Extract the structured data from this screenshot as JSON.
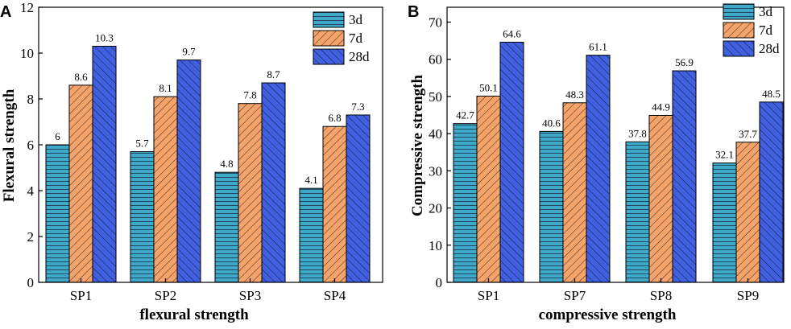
{
  "colors": {
    "c3d": "#3fa9c9",
    "c7d": "#f4a36a",
    "c28d": "#4060e0"
  },
  "chart_data": [
    {
      "type": "bar",
      "panel": "A",
      "categories": [
        "SP1",
        "SP2",
        "SP3",
        "SP4"
      ],
      "series": [
        {
          "name": "3d",
          "values": [
            6,
            5.7,
            4.8,
            4.1
          ]
        },
        {
          "name": "7d",
          "values": [
            8.6,
            8.1,
            7.8,
            6.8
          ]
        },
        {
          "name": "28d",
          "values": [
            10.3,
            9.7,
            8.7,
            7.3
          ]
        }
      ],
      "value_labels": [
        [
          "6",
          "5.7",
          "4.8",
          "4.1"
        ],
        [
          "8.6",
          "8.1",
          "7.8",
          "6.8"
        ],
        [
          "10.3",
          "9.7",
          "8.7",
          "7.3"
        ]
      ],
      "yticks": [
        0,
        2,
        4,
        6,
        8,
        10,
        12
      ],
      "xlabel": "flexural strength",
      "ylabel": "Flexural strength",
      "ylim": [
        0,
        12
      ],
      "legend": "top-right"
    },
    {
      "type": "bar",
      "panel": "B",
      "categories": [
        "SP1",
        "SP7",
        "SP8",
        "SP9"
      ],
      "series": [
        {
          "name": "3d",
          "values": [
            42.7,
            40.6,
            37.8,
            32.1
          ]
        },
        {
          "name": "7d",
          "values": [
            50.1,
            48.3,
            44.9,
            37.7
          ]
        },
        {
          "name": "28d",
          "values": [
            64.6,
            61.1,
            56.9,
            48.5
          ]
        }
      ],
      "value_labels": [
        [
          "42.7",
          "40.6",
          "37.8",
          "32.1"
        ],
        [
          "50.1",
          "48.3",
          "44.9",
          "37.7"
        ],
        [
          "64.6",
          "61.1",
          "56.9",
          "48.5"
        ]
      ],
      "yticks": [
        0,
        10,
        20,
        30,
        40,
        50,
        60,
        70
      ],
      "xlabel": "compressive strength",
      "ylabel": "Compressive strength",
      "ylim": [
        0,
        74
      ],
      "legend": "top-right"
    }
  ]
}
